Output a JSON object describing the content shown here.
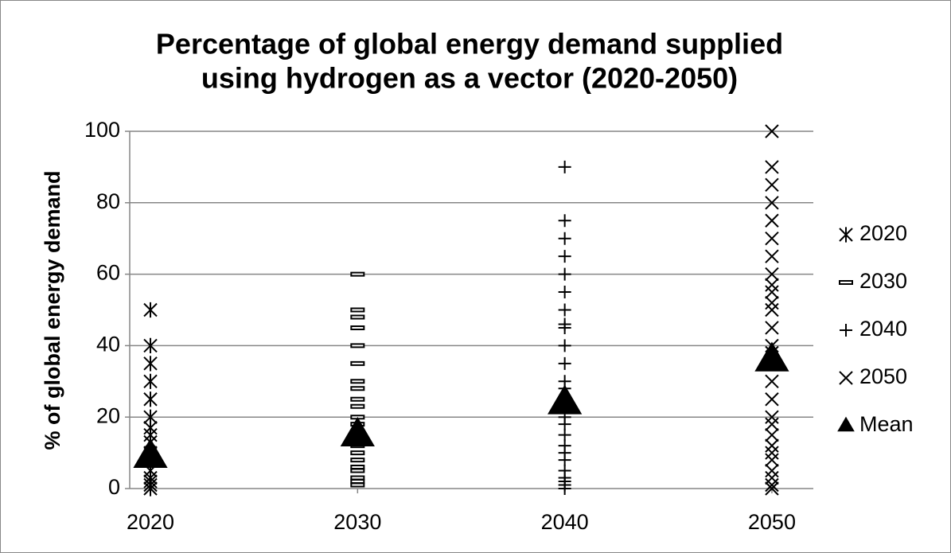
{
  "chart_data": {
    "type": "scatter",
    "title": [
      "Percentage of global energy demand supplied",
      "using hydrogen as a vector (2020-2050)"
    ],
    "y_label": "% of global energy demand",
    "xlim": [
      2019,
      2052
    ],
    "xticks": [
      2020,
      2030,
      2040,
      2050
    ],
    "ylim": [
      0,
      100
    ],
    "yticks": [
      0,
      20,
      40,
      60,
      80,
      100
    ],
    "grid": true,
    "legend": "right",
    "series": [
      {
        "name": "2020",
        "marker": "asterisk",
        "color": "#000000",
        "x": [
          2020,
          2020,
          2020,
          2020,
          2020,
          2020,
          2020,
          2020,
          2020,
          2020,
          2020,
          2020,
          2020,
          2020,
          2020,
          2020
        ],
        "values": [
          50,
          40,
          35,
          30,
          25,
          20,
          17,
          15,
          13,
          10,
          8,
          5,
          3,
          2,
          1,
          0
        ]
      },
      {
        "name": "2030",
        "marker": "dash",
        "color": "#000000",
        "x": [
          2030,
          2030,
          2030,
          2030,
          2030,
          2030,
          2030,
          2030,
          2030,
          2030,
          2030,
          2030,
          2030,
          2030,
          2030,
          2030,
          2030,
          2030,
          2030,
          2030,
          2030
        ],
        "values": [
          60,
          50,
          48,
          45,
          40,
          35,
          30,
          28,
          25,
          23,
          20,
          18,
          15,
          12,
          10,
          8,
          6,
          5,
          3,
          2,
          1
        ]
      },
      {
        "name": "2040",
        "marker": "plus",
        "color": "#000000",
        "x": [
          2040,
          2040,
          2040,
          2040,
          2040,
          2040,
          2040,
          2040,
          2040,
          2040,
          2040,
          2040,
          2040,
          2040,
          2040,
          2040,
          2040,
          2040,
          2040,
          2040,
          2040,
          2040,
          2040,
          2040,
          2040
        ],
        "values": [
          90,
          75,
          70,
          65,
          60,
          55,
          50,
          46,
          45,
          40,
          35,
          30,
          28,
          25,
          20,
          18,
          15,
          12,
          10,
          8,
          5,
          3,
          2,
          1,
          0
        ]
      },
      {
        "name": "2050",
        "marker": "cross",
        "color": "#000000",
        "x": [
          2050,
          2050,
          2050,
          2050,
          2050,
          2050,
          2050,
          2050,
          2050,
          2050,
          2050,
          2050,
          2050,
          2050,
          2050,
          2050,
          2050,
          2050,
          2050,
          2050,
          2050,
          2050,
          2050,
          2050,
          2050,
          2050,
          2050,
          2050
        ],
        "values": [
          100,
          90,
          85,
          80,
          75,
          70,
          65,
          60,
          57,
          55,
          52,
          50,
          45,
          40,
          38,
          35,
          30,
          25,
          20,
          18,
          15,
          12,
          10,
          8,
          5,
          3,
          1,
          0
        ]
      },
      {
        "name": "Mean",
        "marker": "triangle",
        "color": "#000000",
        "x": [
          2020,
          2030,
          2040,
          2050
        ],
        "values": [
          9,
          15,
          24,
          36
        ]
      }
    ]
  }
}
